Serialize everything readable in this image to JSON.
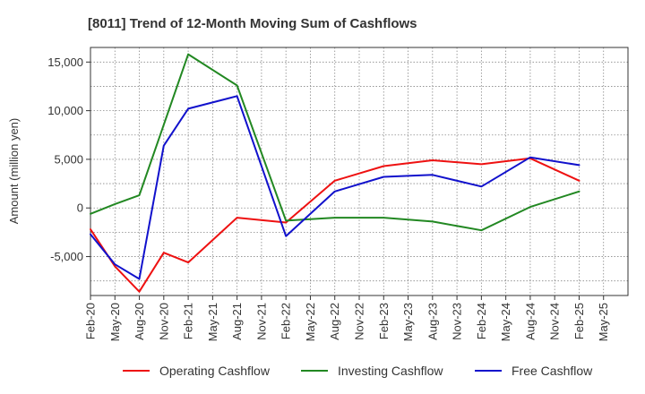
{
  "chart_data": {
    "type": "line",
    "title": "[8011]  Trend of 12-Month Moving Sum of Cashflows",
    "xlabel": "",
    "ylabel": "Amount (million yen)",
    "ylim": [
      -9000,
      16500
    ],
    "yticks": [
      -5000,
      0,
      5000,
      10000,
      15000
    ],
    "ytick_labels": [
      "-5,000",
      "0",
      "5,000",
      "10,000",
      "15,000"
    ],
    "x_ticks": [
      "Feb-20",
      "May-20",
      "Aug-20",
      "Nov-20",
      "Feb-21",
      "May-21",
      "Aug-21",
      "Nov-21",
      "Feb-22",
      "May-22",
      "Aug-22",
      "Nov-22",
      "Feb-23",
      "May-23",
      "Aug-23",
      "Nov-23",
      "Feb-24",
      "May-24",
      "Aug-24",
      "Nov-24",
      "Feb-25",
      "May-25"
    ],
    "grid": true,
    "legend_position": "bottom",
    "series": [
      {
        "name": "Operating Cashflow",
        "color": "#ee1111",
        "points": [
          {
            "x": "Feb-20",
            "y": -2200
          },
          {
            "x": "May-20",
            "y": -6000
          },
          {
            "x": "Aug-20",
            "y": -8600
          },
          {
            "x": "Nov-20",
            "y": -4600
          },
          {
            "x": "Feb-21",
            "y": -5600
          },
          {
            "x": "Aug-21",
            "y": -1000
          },
          {
            "x": "Feb-22",
            "y": -1500
          },
          {
            "x": "Aug-22",
            "y": 2800
          },
          {
            "x": "Feb-23",
            "y": 4300
          },
          {
            "x": "Aug-23",
            "y": 4900
          },
          {
            "x": "Feb-24",
            "y": 4500
          },
          {
            "x": "Aug-24",
            "y": 5100
          },
          {
            "x": "Feb-25",
            "y": 2800
          }
        ]
      },
      {
        "name": "Investing Cashflow",
        "color": "#228822",
        "points": [
          {
            "x": "Feb-20",
            "y": -600
          },
          {
            "x": "May-20",
            "y": 400
          },
          {
            "x": "Aug-20",
            "y": 1300
          },
          {
            "x": "Feb-21",
            "y": 15800
          },
          {
            "x": "Aug-21",
            "y": 12600
          },
          {
            "x": "Feb-22",
            "y": -1300
          },
          {
            "x": "Aug-22",
            "y": -1000
          },
          {
            "x": "Feb-23",
            "y": -1000
          },
          {
            "x": "Aug-23",
            "y": -1400
          },
          {
            "x": "Feb-24",
            "y": -2300
          },
          {
            "x": "Aug-24",
            "y": 100
          },
          {
            "x": "Feb-25",
            "y": 1700
          }
        ]
      },
      {
        "name": "Free Cashflow",
        "color": "#1111cc",
        "points": [
          {
            "x": "Feb-20",
            "y": -2700
          },
          {
            "x": "May-20",
            "y": -5800
          },
          {
            "x": "Aug-20",
            "y": -7300
          },
          {
            "x": "Nov-20",
            "y": 6400
          },
          {
            "x": "Feb-21",
            "y": 10200
          },
          {
            "x": "Aug-21",
            "y": 11500
          },
          {
            "x": "Feb-22",
            "y": -2900
          },
          {
            "x": "Aug-22",
            "y": 1700
          },
          {
            "x": "Feb-23",
            "y": 3200
          },
          {
            "x": "Aug-23",
            "y": 3400
          },
          {
            "x": "Feb-24",
            "y": 2200
          },
          {
            "x": "Aug-24",
            "y": 5200
          },
          {
            "x": "Feb-25",
            "y": 4400
          }
        ]
      }
    ]
  }
}
